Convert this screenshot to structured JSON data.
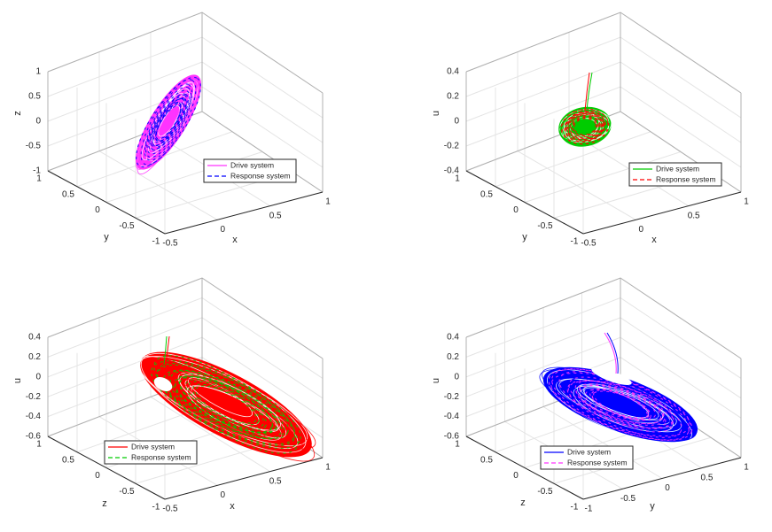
{
  "chart_data": [
    {
      "type": "line3d",
      "panel": "top-left",
      "xlabel": "x",
      "ylabel": "y",
      "zlabel": "z",
      "xlim": [
        -0.5,
        1
      ],
      "ylim": [
        -1,
        1
      ],
      "zlim": [
        -1,
        1
      ],
      "x_ticks": [
        "-0.5",
        "0",
        "0.5",
        "1"
      ],
      "y_ticks": [
        "-1",
        "-0.5",
        "0",
        "0.5",
        "1"
      ],
      "z_ticks": [
        "-1",
        "-0.5",
        "0",
        "0.5",
        "1"
      ],
      "grid": true,
      "legend_position": "lower-right",
      "series": [
        {
          "name": "Drive system",
          "color": "#ff33ff",
          "style": "solid"
        },
        {
          "name": "Response system",
          "color": "#0000ff",
          "style": "dashed"
        }
      ]
    },
    {
      "type": "line3d",
      "panel": "top-right",
      "xlabel": "x",
      "ylabel": "y",
      "zlabel": "u",
      "xlim": [
        -0.5,
        1
      ],
      "ylim": [
        -1,
        1
      ],
      "zlim": [
        -0.4,
        0.4
      ],
      "x_ticks": [
        "-0.5",
        "0",
        "0.5",
        "1"
      ],
      "y_ticks": [
        "-1",
        "-0.5",
        "0",
        "0.5",
        "1"
      ],
      "z_ticks": [
        "-0.4",
        "-0.2",
        "0",
        "0.2",
        "0.4"
      ],
      "grid": true,
      "legend_position": "lower-right",
      "series": [
        {
          "name": "Drive system",
          "color": "#00cc00",
          "style": "solid"
        },
        {
          "name": "Response system",
          "color": "#ff0000",
          "style": "dashed"
        }
      ]
    },
    {
      "type": "line3d",
      "panel": "bottom-left",
      "xlabel": "x",
      "ylabel": "z",
      "zlabel": "u",
      "xlim": [
        -0.5,
        1
      ],
      "ylim": [
        -1,
        1
      ],
      "zlim": [
        -0.6,
        0.4
      ],
      "x_ticks": [
        "-0.5",
        "0",
        "0.5",
        "1"
      ],
      "y_ticks": [
        "-1",
        "-0.5",
        "0",
        "0.5",
        "1"
      ],
      "z_ticks": [
        "-0.6",
        "-0.4",
        "-0.2",
        "0",
        "0.2",
        "0.4"
      ],
      "grid": true,
      "legend_position": "lower-left",
      "series": [
        {
          "name": "Drive system",
          "color": "#ff0000",
          "style": "solid"
        },
        {
          "name": "Response system",
          "color": "#00cc00",
          "style": "dashed"
        }
      ]
    },
    {
      "type": "line3d",
      "panel": "bottom-right",
      "xlabel": "y",
      "ylabel": "z",
      "zlabel": "u",
      "xlim": [
        -1,
        1
      ],
      "ylim": [
        -1,
        1
      ],
      "zlim": [
        -0.6,
        0.4
      ],
      "x_ticks": [
        "-1",
        "-0.5",
        "0",
        "0.5",
        "1"
      ],
      "y_ticks": [
        "-1",
        "-0.5",
        "0",
        "0.5",
        "1"
      ],
      "z_ticks": [
        "-0.6",
        "-0.4",
        "-0.2",
        "0",
        "0.2",
        "0.4"
      ],
      "grid": true,
      "legend_position": "lower-left",
      "series": [
        {
          "name": "Drive system",
          "color": "#0000ff",
          "style": "solid"
        },
        {
          "name": "Response system",
          "color": "#ff33ff",
          "style": "dashed"
        }
      ]
    }
  ]
}
